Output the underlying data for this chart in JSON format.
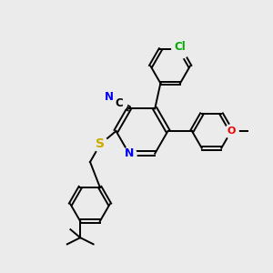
{
  "bg_color": "#ebebeb",
  "bond_color": "#000000",
  "line_width": 1.4,
  "atom_colors": {
    "N": "#0000ee",
    "S": "#ccaa00",
    "O": "#ee0000",
    "Cl": "#00aa00"
  },
  "font_size_atom": 8,
  "font_size_label": 7
}
